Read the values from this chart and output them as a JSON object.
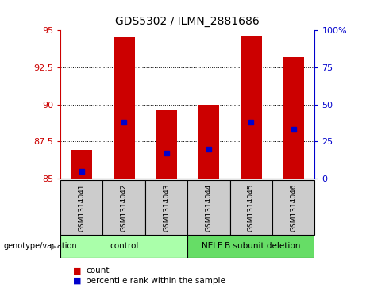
{
  "title": "GDS5302 / ILMN_2881686",
  "samples": [
    "GSM1314041",
    "GSM1314042",
    "GSM1314043",
    "GSM1314044",
    "GSM1314045",
    "GSM1314046"
  ],
  "count_values": [
    86.95,
    94.5,
    89.6,
    90.0,
    94.6,
    93.2
  ],
  "percentile_values": [
    5.0,
    38.0,
    17.0,
    20.0,
    38.0,
    33.0
  ],
  "bar_bottom": 85,
  "ylim_left": [
    85,
    95
  ],
  "ylim_right": [
    0,
    100
  ],
  "yticks_left": [
    85,
    87.5,
    90,
    92.5,
    95
  ],
  "yticks_right": [
    0,
    25,
    50,
    75,
    100
  ],
  "ytick_labels_left": [
    "85",
    "87.5",
    "90",
    "92.5",
    "95"
  ],
  "ytick_labels_right": [
    "0",
    "25",
    "50",
    "75",
    "100%"
  ],
  "bar_color": "#cc0000",
  "marker_color": "#0000cc",
  "grid_color": "#000000",
  "bg_color": "#ffffff",
  "plot_bg_color": "#ffffff",
  "groups": [
    {
      "label": "control",
      "indices": [
        0,
        1,
        2
      ],
      "color": "#aaffaa"
    },
    {
      "label": "NELF B subunit deletion",
      "indices": [
        3,
        4,
        5
      ],
      "color": "#66dd66"
    }
  ],
  "group_label_prefix": "genotype/variation",
  "sample_bg_color": "#cccccc",
  "legend_items": [
    "count",
    "percentile rank within the sample"
  ],
  "left_axis_color": "#cc0000",
  "right_axis_color": "#0000cc",
  "bar_width": 0.5
}
